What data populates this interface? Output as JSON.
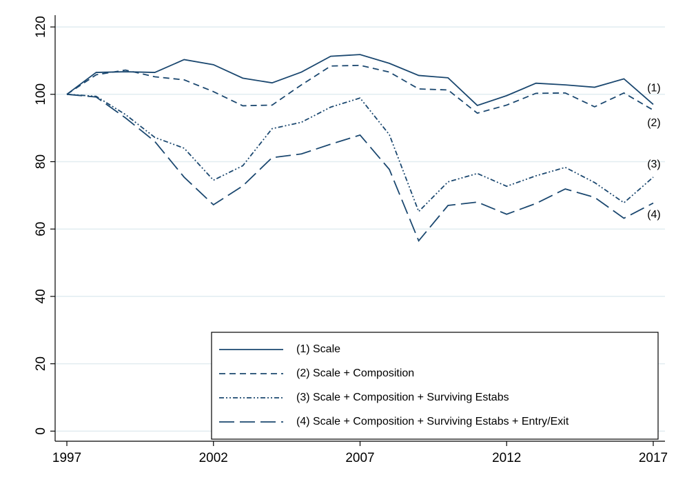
{
  "chart_data": {
    "type": "line",
    "x": [
      1997,
      1998,
      1999,
      2000,
      2001,
      2002,
      2003,
      2004,
      2005,
      2006,
      2007,
      2008,
      2009,
      2010,
      2011,
      2012,
      2013,
      2014,
      2015,
      2016,
      2017
    ],
    "series": [
      {
        "name": "(1) Scale",
        "color": "#1a476f",
        "dash": "none",
        "values": [
          100,
          106.5,
          106.7,
          106.5,
          110.3,
          108.8,
          104.8,
          103.4,
          106.6,
          111.3,
          111.8,
          109.2,
          105.6,
          104.9,
          96.7,
          99.6,
          103.3,
          102.8,
          102.1,
          104.6,
          97.0
        ]
      },
      {
        "name": "(2) Scale + Composition",
        "color": "#1a476f",
        "dash": "9,6",
        "values": [
          100,
          105.8,
          107.2,
          105.2,
          104.3,
          100.8,
          96.6,
          96.8,
          102.8,
          108.4,
          108.6,
          106.6,
          101.6,
          101.3,
          94.4,
          96.8,
          100.3,
          100.4,
          96.3,
          100.4,
          95.3
        ]
      },
      {
        "name": "(3) Scale + Composition + Surviving Estabs",
        "color": "#1a476f",
        "dash": "7,3,2,3,2,3",
        "values": [
          100,
          99.4,
          94.0,
          87.2,
          84.0,
          74.5,
          78.8,
          89.8,
          91.7,
          96.2,
          98.9,
          88.0,
          65.2,
          74.0,
          76.5,
          72.7,
          75.8,
          78.3,
          73.8,
          67.8,
          75.4
        ]
      },
      {
        "name": "(4) Scale + Composition + Surviving Estabs + Entry/Exit",
        "color": "#1a476f",
        "dash": "22,8",
        "values": [
          100,
          99.2,
          93.0,
          86.0,
          75.4,
          67.2,
          72.8,
          81.2,
          82.3,
          85.2,
          87.9,
          77.7,
          56.5,
          67.0,
          68.0,
          64.4,
          67.6,
          71.9,
          69.4,
          63.2,
          67.7
        ]
      }
    ],
    "annotations": [
      "(1)",
      "(2)",
      "(3)",
      "(4)"
    ],
    "xlim": [
      1996.6,
      2017.4
    ],
    "xticks": [
      1997,
      2002,
      2007,
      2012,
      2017
    ],
    "ylim": [
      -3,
      123.5
    ],
    "yticks": [
      0,
      20,
      40,
      60,
      80,
      100,
      120
    ],
    "grid": true,
    "grid_color": "#e1ecf0",
    "legend": "bottom-right"
  }
}
